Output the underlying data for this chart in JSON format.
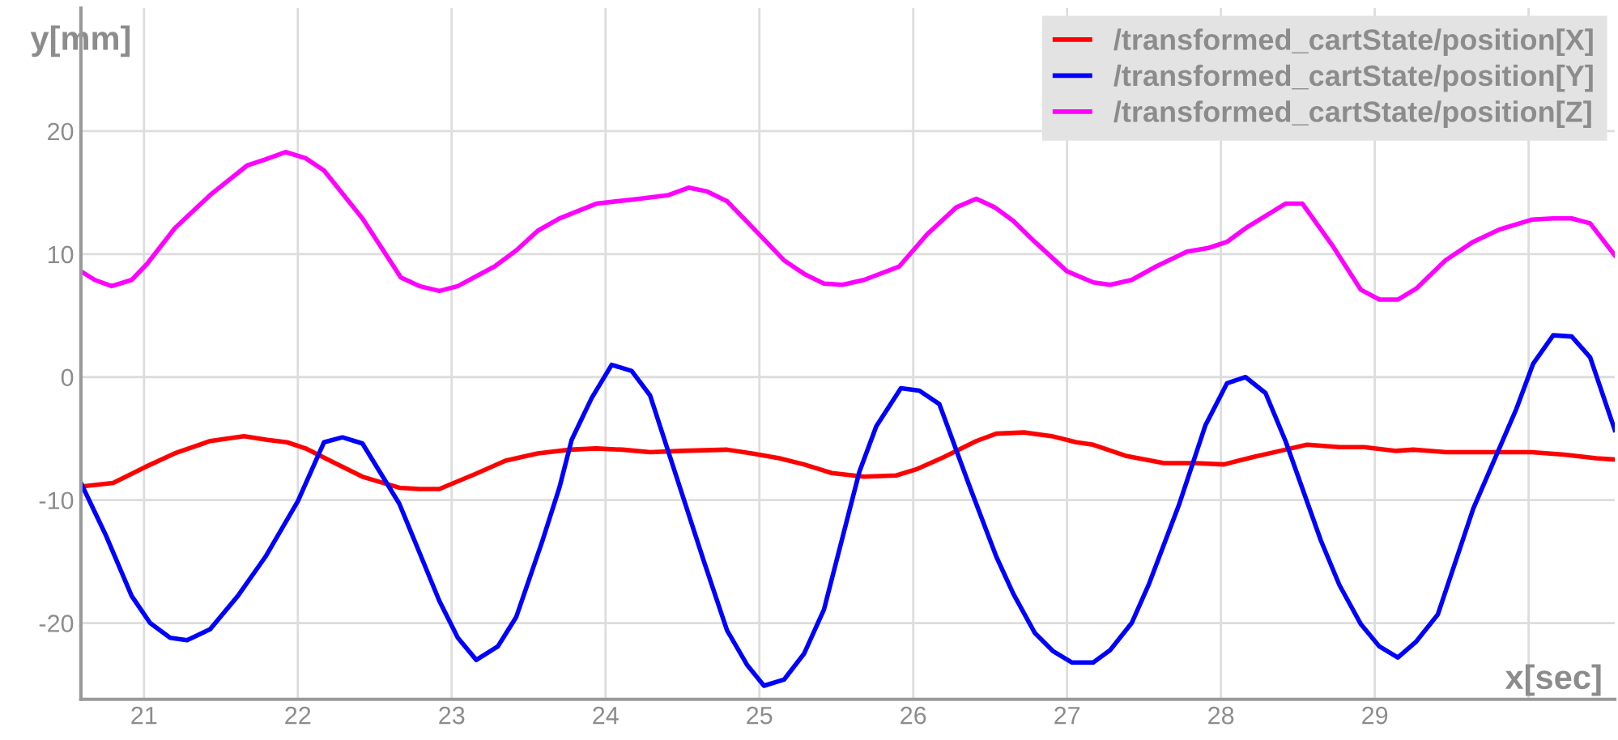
{
  "chart_data": {
    "type": "line",
    "xlabel": "x[sec]",
    "ylabel": "y[mm]",
    "xlim": [
      20.59,
      30.56
    ],
    "ylim": [
      -26.2,
      30
    ],
    "xticks": [
      21,
      22,
      23,
      24,
      25,
      26,
      27,
      28,
      29,
      {
        "value": 30,
        "label": null
      }
    ],
    "yticks": [
      -20,
      -10,
      0,
      10,
      20
    ],
    "grid": true,
    "legend": "top right",
    "marker": "none",
    "line_style": "solid",
    "series": [
      {
        "name": "/transformed_cartState/position[X]",
        "color": "#ff0000",
        "x": [
          20.59,
          20.8,
          21.01,
          21.2,
          21.43,
          21.65,
          21.8,
          21.93,
          22.05,
          22.21,
          22.42,
          22.66,
          22.79,
          22.92,
          23.15,
          23.35,
          23.56,
          23.77,
          23.94,
          24.11,
          24.29,
          24.5,
          24.79,
          24.95,
          25.13,
          25.29,
          25.47,
          25.68,
          25.89,
          26.02,
          26.2,
          26.41,
          26.54,
          26.72,
          26.9,
          27.06,
          27.17,
          27.38,
          27.63,
          27.83,
          28.02,
          28.21,
          28.42,
          28.56,
          28.77,
          28.93,
          29.14,
          29.25,
          29.46,
          29.81,
          30.02,
          30.23,
          30.44,
          30.56
        ],
        "values": [
          -8.9,
          -8.6,
          -7.3,
          -6.2,
          -5.2,
          -4.8,
          -5.1,
          -5.3,
          -5.8,
          -6.8,
          -8.1,
          -9.0,
          -9.1,
          -9.1,
          -7.9,
          -6.8,
          -6.2,
          -5.9,
          -5.8,
          -5.9,
          -6.1,
          -6.0,
          -5.9,
          -6.2,
          -6.6,
          -7.1,
          -7.8,
          -8.1,
          -8.0,
          -7.5,
          -6.5,
          -5.2,
          -4.6,
          -4.5,
          -4.8,
          -5.3,
          -5.5,
          -6.4,
          -7.0,
          -7.0,
          -7.1,
          -6.5,
          -5.9,
          -5.5,
          -5.7,
          -5.7,
          -6.0,
          -5.9,
          -6.1,
          -6.1,
          -6.1,
          -6.3,
          -6.6,
          -6.7
        ]
      },
      {
        "name": "/transformed_cartState/position[Y]",
        "color": "#0000ff",
        "x": [
          20.59,
          20.75,
          20.92,
          21.04,
          21.17,
          21.28,
          21.43,
          21.61,
          21.79,
          22.0,
          22.17,
          22.29,
          22.42,
          22.66,
          22.92,
          23.04,
          23.16,
          23.3,
          23.42,
          23.59,
          23.7,
          23.78,
          23.91,
          24.04,
          24.17,
          24.29,
          24.64,
          24.79,
          24.92,
          25.03,
          25.16,
          25.29,
          25.42,
          25.65,
          25.76,
          25.92,
          26.04,
          26.17,
          26.37,
          26.54,
          26.65,
          26.79,
          26.91,
          27.03,
          27.17,
          27.28,
          27.42,
          27.53,
          27.73,
          27.9,
          28.04,
          28.16,
          28.29,
          28.42,
          28.65,
          28.77,
          28.91,
          29.03,
          29.15,
          29.27,
          29.41,
          29.64,
          29.92,
          30.03,
          30.16,
          30.28,
          30.4,
          30.56
        ],
        "values": [
          -8.6,
          -12.8,
          -17.8,
          -20.0,
          -21.2,
          -21.4,
          -20.5,
          -17.8,
          -14.6,
          -10.1,
          -5.3,
          -4.9,
          -5.4,
          -10.3,
          -18.2,
          -21.2,
          -23.0,
          -21.9,
          -19.5,
          -13.3,
          -9.0,
          -5.1,
          -1.7,
          1.0,
          0.5,
          -1.5,
          -15.0,
          -20.6,
          -23.4,
          -25.1,
          -24.6,
          -22.5,
          -18.9,
          -7.7,
          -4.0,
          -0.9,
          -1.1,
          -2.2,
          -9.0,
          -14.6,
          -17.6,
          -20.8,
          -22.3,
          -23.2,
          -23.2,
          -22.2,
          -20.0,
          -16.9,
          -10.3,
          -3.9,
          -0.5,
          0.0,
          -1.3,
          -5.2,
          -13.3,
          -16.9,
          -20.1,
          -21.9,
          -22.8,
          -21.5,
          -19.3,
          -10.7,
          -2.6,
          1.1,
          3.4,
          3.3,
          1.6,
          -4.3
        ]
      },
      {
        "name": "/transformed_cartState/position[Z]",
        "color": "#ff00ff",
        "x": [
          20.59,
          20.68,
          20.79,
          20.92,
          21.02,
          21.2,
          21.43,
          21.67,
          21.79,
          21.92,
          22.05,
          22.17,
          22.42,
          22.67,
          22.79,
          22.92,
          23.04,
          23.28,
          23.42,
          23.56,
          23.7,
          23.94,
          24.22,
          24.41,
          24.54,
          24.66,
          24.79,
          24.93,
          25.16,
          25.29,
          25.42,
          25.54,
          25.68,
          25.91,
          26.09,
          26.28,
          26.41,
          26.53,
          26.65,
          26.79,
          27.0,
          27.17,
          27.28,
          27.42,
          27.58,
          27.78,
          27.92,
          28.04,
          28.16,
          28.42,
          28.53,
          28.73,
          28.91,
          29.03,
          29.15,
          29.27,
          29.46,
          29.64,
          29.81,
          30.02,
          30.16,
          30.28,
          30.4,
          30.56
        ],
        "values": [
          8.6,
          7.9,
          7.4,
          7.9,
          9.2,
          12.1,
          14.8,
          17.2,
          17.7,
          18.3,
          17.8,
          16.8,
          12.9,
          8.1,
          7.4,
          7.0,
          7.4,
          9.0,
          10.3,
          11.9,
          12.9,
          14.1,
          14.5,
          14.8,
          15.4,
          15.1,
          14.3,
          12.5,
          9.5,
          8.4,
          7.6,
          7.5,
          7.9,
          9.0,
          11.6,
          13.8,
          14.5,
          13.8,
          12.7,
          11.0,
          8.6,
          7.7,
          7.5,
          7.9,
          9.0,
          10.2,
          10.5,
          11.0,
          12.1,
          14.1,
          14.1,
          10.6,
          7.1,
          6.3,
          6.3,
          7.2,
          9.5,
          11.0,
          12.0,
          12.8,
          12.9,
          12.9,
          12.5,
          9.9
        ]
      }
    ]
  }
}
